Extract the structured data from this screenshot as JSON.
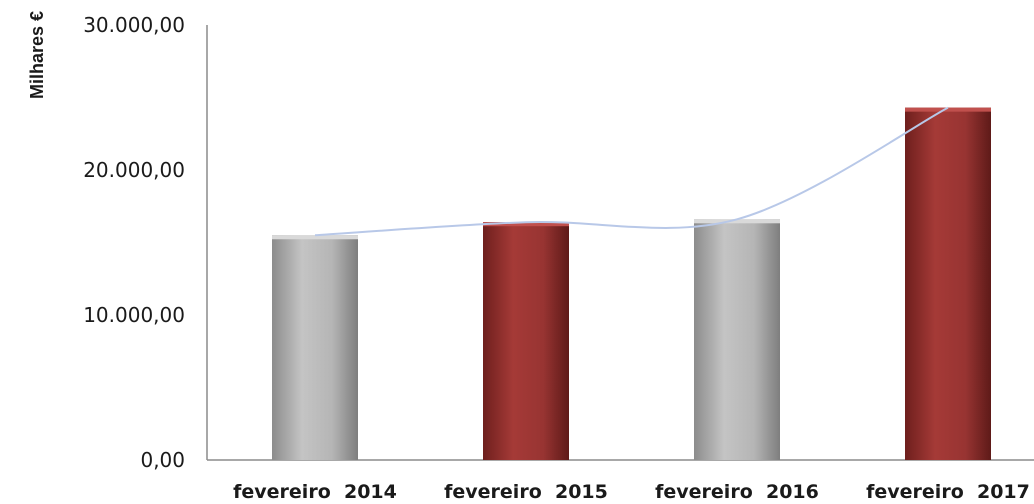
{
  "chart_data": {
    "type": "bar",
    "title": "",
    "xlabel": "",
    "ylabel": "Milhares €",
    "ylim": [
      0,
      30000
    ],
    "y_ticks": [
      0,
      10000,
      20000,
      30000
    ],
    "y_tick_labels": [
      "0,00",
      "10.000,00",
      "20.000,00",
      "30.000,00"
    ],
    "categories": [
      "fevereiro  2014",
      "fevereiro  2015",
      "fevereiro  2016",
      "fevereiro  2017"
    ],
    "values": [
      15500,
      16400,
      16600,
      24300
    ],
    "bar_colors": [
      "#b3b3b3",
      "#9b3634",
      "#b3b3b3",
      "#9b3634"
    ],
    "trendline": true,
    "trendline_color": "#b8c8e8",
    "grid": false,
    "legend": "none"
  }
}
